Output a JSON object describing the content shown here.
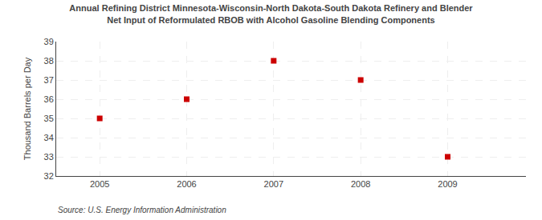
{
  "chart_data": {
    "type": "scatter",
    "title": "Annual Refining District Minnesota-Wisconsin-North Dakota-South Dakota Refinery and Blender",
    "subtitle": "Net Input of Reformulated RBOB with Alcohol Gasoline Blending Components",
    "ylabel": "Thousand Barrels per Day",
    "annotations": [
      "Source: U.S. Energy Information Administration"
    ],
    "x": [
      2005,
      2006,
      2007,
      2008,
      2009
    ],
    "values": [
      35.0,
      36.0,
      38.0,
      37.0,
      33.0
    ],
    "color": "#cc0000",
    "marker": "square",
    "line_style": "none",
    "xlim": [
      2004.5,
      2009.9
    ],
    "xticks": [
      2005,
      2006,
      2007,
      2008,
      2009
    ],
    "ylim": [
      32,
      39
    ],
    "yticks": [
      32,
      33,
      34,
      35,
      36,
      37,
      38,
      39
    ],
    "grid": true
  }
}
